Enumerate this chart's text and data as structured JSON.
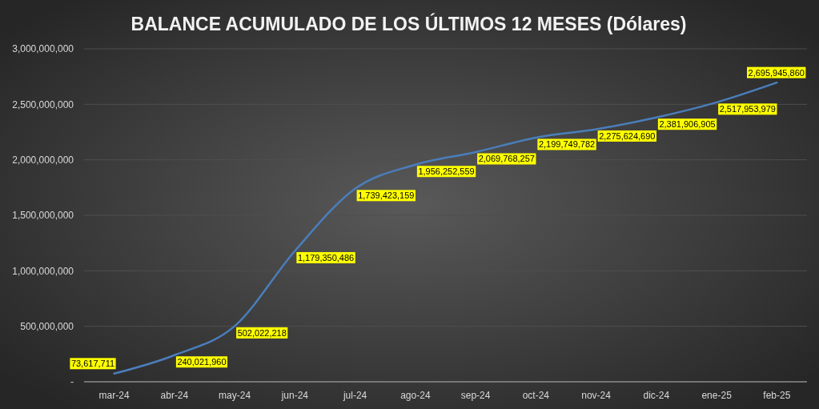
{
  "chart_data": {
    "type": "line",
    "title": "BALANCE ACUMULADO DE LOS ÚLTIMOS 12 MESES (Dólares)",
    "categories": [
      "mar-24",
      "abr-24",
      "may-24",
      "jun-24",
      "jul-24",
      "ago-24",
      "sep-24",
      "oct-24",
      "nov-24",
      "dic-24",
      "ene-25",
      "feb-25"
    ],
    "values": [
      73617711,
      240021960,
      502022218,
      1179350486,
      1739423159,
      1956252559,
      2069768257,
      2199749782,
      2275624690,
      2381906905,
      2517953979,
      2695945860
    ],
    "value_labels": [
      "73,617,711",
      "240,021,960",
      "502,022,218",
      "1,179,350,486",
      "1,739,423,159",
      "1,956,252,559",
      "2,069,768,257",
      "2,199,749,782",
      "2,275,624,690",
      "2,381,906,905",
      "2,517,953,979",
      "2,695,945,860"
    ],
    "color": "#4a7ebb",
    "ylim": [
      0,
      3000000000
    ],
    "yticks": [
      {
        "value": 0,
        "label": "-"
      },
      {
        "value": 500000000,
        "label": "500,000,000"
      },
      {
        "value": 1000000000,
        "label": "1,000,000,000"
      },
      {
        "value": 1500000000,
        "label": "1,500,000,000"
      },
      {
        "value": 2000000000,
        "label": "2,000,000,000"
      },
      {
        "value": 2500000000,
        "label": "2,500,000,000"
      },
      {
        "value": 3000000000,
        "label": "3,000,000,000"
      }
    ],
    "grid": "y"
  }
}
